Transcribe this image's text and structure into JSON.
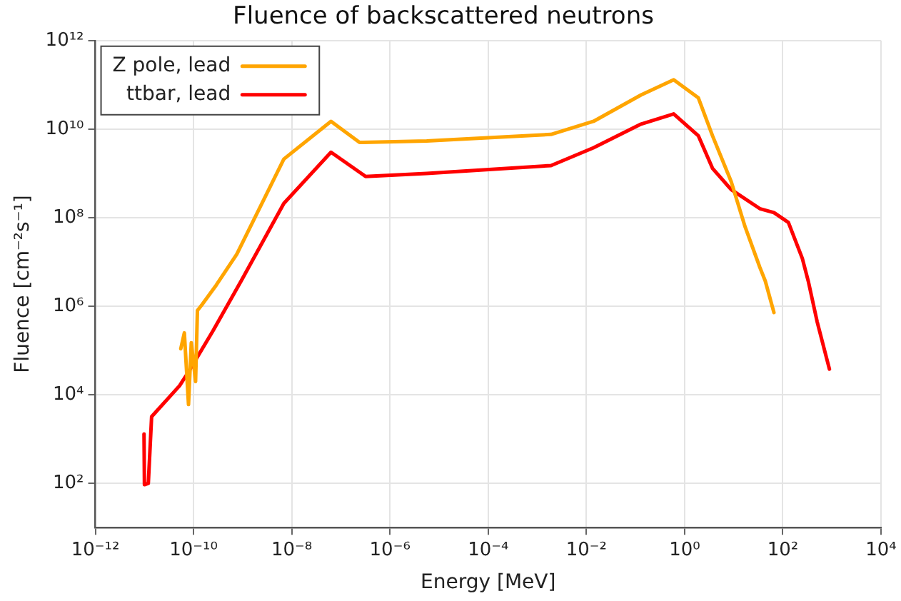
{
  "chart_data": {
    "type": "line",
    "title": "Fluence of backscattered neutrons",
    "xlabel": "Energy [MeV]",
    "ylabel": "Fluence [cm⁻²s⁻¹]",
    "log": "xy",
    "grid": true,
    "legend": "top left",
    "marker": "none",
    "line_style": "solid",
    "xlim": [
      1e-12,
      10000.0
    ],
    "ylim": [
      10,
      1000000000000.0
    ],
    "xticks": [
      {
        "value": 1e-12,
        "label": "10⁻¹²"
      },
      {
        "value": 1e-10,
        "label": "10⁻¹⁰"
      },
      {
        "value": 1e-08,
        "label": "10⁻⁸"
      },
      {
        "value": 1e-06,
        "label": "10⁻⁶"
      },
      {
        "value": 0.0001,
        "label": "10⁻⁴"
      },
      {
        "value": 0.01,
        "label": "10⁻²"
      },
      {
        "value": 1,
        "label": "10⁰"
      },
      {
        "value": 100.0,
        "label": "10²"
      },
      {
        "value": 10000.0,
        "label": "10⁴"
      }
    ],
    "yticks": [
      {
        "value": 100.0,
        "label": "10²"
      },
      {
        "value": 10000.0,
        "label": "10⁴"
      },
      {
        "value": 1000000.0,
        "label": "10⁶"
      },
      {
        "value": 100000000.0,
        "label": "10⁸"
      },
      {
        "value": 10000000000.0,
        "label": "10¹⁰"
      },
      {
        "value": 1000000000000.0,
        "label": "10¹²"
      }
    ],
    "series": [
      {
        "name": "Z pole, lead",
        "color": "#ffa500",
        "x": [
          5.5e-11,
          6.5e-11,
          7.9e-11,
          9e-11,
          1.1e-10,
          1.2e-10,
          1.5e-10,
          2.9e-10,
          7.6e-10,
          6.9e-09,
          6.3e-08,
          2.4e-07,
          5.6e-06,
          0.0019,
          0.014,
          0.13,
          0.6,
          1.9,
          3.7,
          8.9,
          17,
          34,
          44,
          66
        ],
        "values": [
          110000.0,
          250000.0,
          6000.0,
          150000.0,
          20000.0,
          800000.0,
          1100000.0,
          3000000.0,
          15000000.0,
          2100000000.0,
          15000000000.0,
          5000000000.0,
          5400000000.0,
          7600000000.0,
          15000000000.0,
          59000000000.0,
          130000000000.0,
          51000000000.0,
          7100000000.0,
          650000000.0,
          63000000.0,
          7600000.0,
          3700000.0,
          720000.0
        ]
      },
      {
        "name": "ttbar, lead",
        "color": "#ff0000",
        "x": [
          9.8e-12,
          1e-11,
          1.2e-11,
          1.4e-11,
          5.2e-11,
          7.9e-11,
          2.5e-10,
          9.3e-10,
          6.9e-09,
          6.3e-08,
          3.2e-07,
          5.6e-06,
          0.0019,
          0.014,
          0.13,
          0.6,
          1.9,
          3.7,
          8.9,
          34,
          66,
          130,
          250,
          330,
          500,
          890
        ],
        "values": [
          1300.0,
          93.0,
          100.0,
          3200.0,
          16000.0,
          33000.0,
          280000.0,
          3700000.0,
          210000000.0,
          3000000000.0,
          850000000.0,
          1000000000.0,
          1500000000.0,
          3800000000.0,
          13000000000.0,
          22000000000.0,
          7100000000.0,
          1300000000.0,
          430000000.0,
          160000000.0,
          130000000.0,
          78000000.0,
          12000000.0,
          3700000.0,
          450000.0,
          38000.0
        ]
      }
    ]
  }
}
